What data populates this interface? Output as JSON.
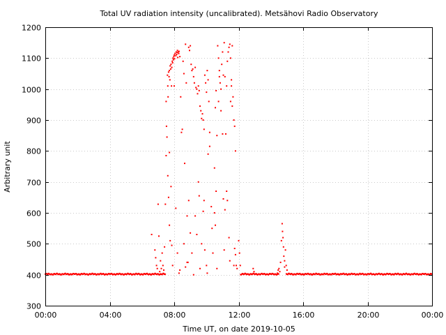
{
  "chart_data": {
    "type": "scatter",
    "title": "Total UV radiation intensity (uncalibrated). Metsähovi Radio Observatory",
    "xlabel": "Time UT, on date 2019-10-05",
    "ylabel": "Arbitrary unit",
    "xlim": [
      0,
      24
    ],
    "ylim": [
      300,
      1200
    ],
    "x_ticks": [
      0,
      4,
      8,
      12,
      16,
      20,
      24
    ],
    "x_tick_labels": [
      "00:00",
      "04:00",
      "08:00",
      "12:00",
      "16:00",
      "20:00",
      "00:00"
    ],
    "y_ticks": [
      300,
      400,
      500,
      600,
      700,
      800,
      900,
      1000,
      1100,
      1200
    ],
    "y_tick_labels": [
      "300",
      "400",
      "500",
      "600",
      "700",
      "800",
      "900",
      "1000",
      "1100",
      "1200"
    ],
    "grid": true,
    "marker_color": "#ff0000",
    "series": [
      {
        "baseline_value": 402,
        "x_unit": "hours UT",
        "points": [
          [
            6.6,
            530
          ],
          [
            6.8,
            480
          ],
          [
            6.85,
            455
          ],
          [
            6.9,
            430
          ],
          [
            6.95,
            420
          ],
          [
            7.0,
            628
          ],
          [
            7.05,
            525
          ],
          [
            7.1,
            410
          ],
          [
            7.15,
            445
          ],
          [
            7.2,
            420
          ],
          [
            7.25,
            470
          ],
          [
            7.3,
            430
          ],
          [
            7.35,
            415
          ],
          [
            7.4,
            490
          ],
          [
            7.45,
            628
          ],
          [
            7.5,
            785
          ],
          [
            7.5,
            960
          ],
          [
            7.52,
            880
          ],
          [
            7.55,
            845
          ],
          [
            7.58,
            1045
          ],
          [
            7.6,
            1010
          ],
          [
            7.62,
            975
          ],
          [
            7.65,
            1055
          ],
          [
            7.68,
            1040
          ],
          [
            7.7,
            795
          ],
          [
            7.7,
            1060
          ],
          [
            7.73,
            1030
          ],
          [
            7.75,
            1075
          ],
          [
            7.78,
            1065
          ],
          [
            7.8,
            1080
          ],
          [
            7.83,
            1010
          ],
          [
            7.85,
            1070
          ],
          [
            7.88,
            1090
          ],
          [
            7.9,
            1085
          ],
          [
            7.92,
            1100
          ],
          [
            7.95,
            1095
          ],
          [
            7.98,
            1105
          ],
          [
            8.0,
            1110
          ],
          [
            8.02,
            1098
          ],
          [
            8.05,
            1115
          ],
          [
            8.1,
            1108
          ],
          [
            8.12,
            1120
          ],
          [
            8.15,
            1112
          ],
          [
            8.18,
            1118
          ],
          [
            8.2,
            1125
          ],
          [
            8.22,
            1102
          ],
          [
            8.25,
            1120
          ],
          [
            8.28,
            1115
          ],
          [
            8.3,
            1122
          ],
          [
            8.35,
            1105
          ],
          [
            7.6,
            720
          ],
          [
            7.65,
            650
          ],
          [
            7.7,
            560
          ],
          [
            7.75,
            510
          ],
          [
            7.8,
            685
          ],
          [
            7.85,
            495
          ],
          [
            7.9,
            430
          ],
          [
            8.0,
            1010
          ],
          [
            8.1,
            615
          ],
          [
            8.2,
            470
          ],
          [
            8.3,
            405
          ],
          [
            8.35,
            415
          ],
          [
            8.4,
            975
          ],
          [
            8.45,
            860
          ],
          [
            8.5,
            870
          ],
          [
            8.55,
            1090
          ],
          [
            8.6,
            1050
          ],
          [
            8.65,
            760
          ],
          [
            8.7,
            1145
          ],
          [
            8.75,
            1020
          ],
          [
            8.8,
            590
          ],
          [
            8.85,
            440
          ],
          [
            8.9,
            1135
          ],
          [
            8.95,
            1125
          ],
          [
            9.0,
            1140
          ],
          [
            9.05,
            1080
          ],
          [
            9.1,
            1060
          ],
          [
            9.15,
            1065
          ],
          [
            9.2,
            1040
          ],
          [
            9.25,
            1020
          ],
          [
            9.3,
            1070
          ],
          [
            9.35,
            1005
          ],
          [
            9.4,
            1000
          ],
          [
            9.45,
            985
          ],
          [
            9.5,
            1010
          ],
          [
            9.55,
            995
          ],
          [
            9.6,
            945
          ],
          [
            9.65,
            930
          ],
          [
            9.7,
            905
          ],
          [
            9.75,
            920
          ],
          [
            9.8,
            900
          ],
          [
            9.85,
            870
          ],
          [
            9.9,
            1045
          ],
          [
            9.95,
            1020
          ],
          [
            10.0,
            990
          ],
          [
            10.05,
            1060
          ],
          [
            10.1,
            1030
          ],
          [
            10.15,
            960
          ],
          [
            10.2,
            860
          ],
          [
            8.6,
            500
          ],
          [
            8.7,
            425
          ],
          [
            8.8,
            440
          ],
          [
            8.9,
            640
          ],
          [
            9.0,
            535
          ],
          [
            9.1,
            470
          ],
          [
            9.2,
            400
          ],
          [
            9.3,
            590
          ],
          [
            9.4,
            530
          ],
          [
            9.5,
            700
          ],
          [
            9.55,
            655
          ],
          [
            9.6,
            420
          ],
          [
            9.7,
            500
          ],
          [
            9.8,
            605
          ],
          [
            9.85,
            640
          ],
          [
            9.9,
            480
          ],
          [
            10.0,
            430
          ],
          [
            10.05,
            405
          ],
          [
            10.1,
            790
          ],
          [
            10.2,
            815
          ],
          [
            10.3,
            620
          ],
          [
            10.35,
            550
          ],
          [
            10.4,
            470
          ],
          [
            10.5,
            600
          ],
          [
            10.55,
            560
          ],
          [
            10.6,
            670
          ],
          [
            10.65,
            420
          ],
          [
            10.7,
            1140
          ],
          [
            10.75,
            1100
          ],
          [
            10.8,
            1060
          ],
          [
            10.85,
            1020
          ],
          [
            10.9,
            1000
          ],
          [
            10.95,
            1080
          ],
          [
            11.0,
            1120
          ],
          [
            11.05,
            1045
          ],
          [
            11.1,
            1150
          ],
          [
            11.15,
            1040
          ],
          [
            11.2,
            855
          ],
          [
            11.25,
            1010
          ],
          [
            11.3,
            1090
          ],
          [
            11.35,
            1120
          ],
          [
            11.4,
            1135
          ],
          [
            11.45,
            1145
          ],
          [
            11.5,
            1100
          ],
          [
            11.55,
            1030
          ],
          [
            11.6,
            1140
          ],
          [
            11.65,
            975
          ],
          [
            11.7,
            900
          ],
          [
            11.75,
            880
          ],
          [
            11.8,
            800
          ],
          [
            10.5,
            745
          ],
          [
            10.55,
            940
          ],
          [
            10.6,
            995
          ],
          [
            10.65,
            850
          ],
          [
            10.75,
            960
          ],
          [
            10.8,
            1040
          ],
          [
            10.9,
            930
          ],
          [
            11.0,
            855
          ],
          [
            11.05,
            645
          ],
          [
            11.1,
            480
          ],
          [
            11.15,
            610
          ],
          [
            11.25,
            670
          ],
          [
            11.3,
            640
          ],
          [
            11.4,
            520
          ],
          [
            11.45,
            445
          ],
          [
            11.5,
            960
          ],
          [
            11.55,
            1010
          ],
          [
            11.6,
            945
          ],
          [
            11.7,
            430
          ],
          [
            11.75,
            485
          ],
          [
            11.8,
            465
          ],
          [
            11.85,
            430
          ],
          [
            11.9,
            420
          ],
          [
            12.0,
            510
          ],
          [
            12.05,
            470
          ],
          [
            12.1,
            430
          ],
          [
            12.9,
            420
          ],
          [
            12.95,
            410
          ],
          [
            14.5,
            420
          ],
          [
            14.55,
            410
          ],
          [
            14.6,
            440
          ],
          [
            14.65,
            510
          ],
          [
            14.7,
            565
          ],
          [
            14.72,
            540
          ],
          [
            14.75,
            520
          ],
          [
            14.78,
            490
          ],
          [
            14.8,
            460
          ],
          [
            14.85,
            445
          ],
          [
            14.9,
            480
          ],
          [
            14.95,
            430
          ],
          [
            15.0,
            415
          ],
          [
            14.4,
            405
          ],
          [
            14.45,
            415
          ],
          [
            14.85,
            425
          ]
        ]
      }
    ]
  }
}
